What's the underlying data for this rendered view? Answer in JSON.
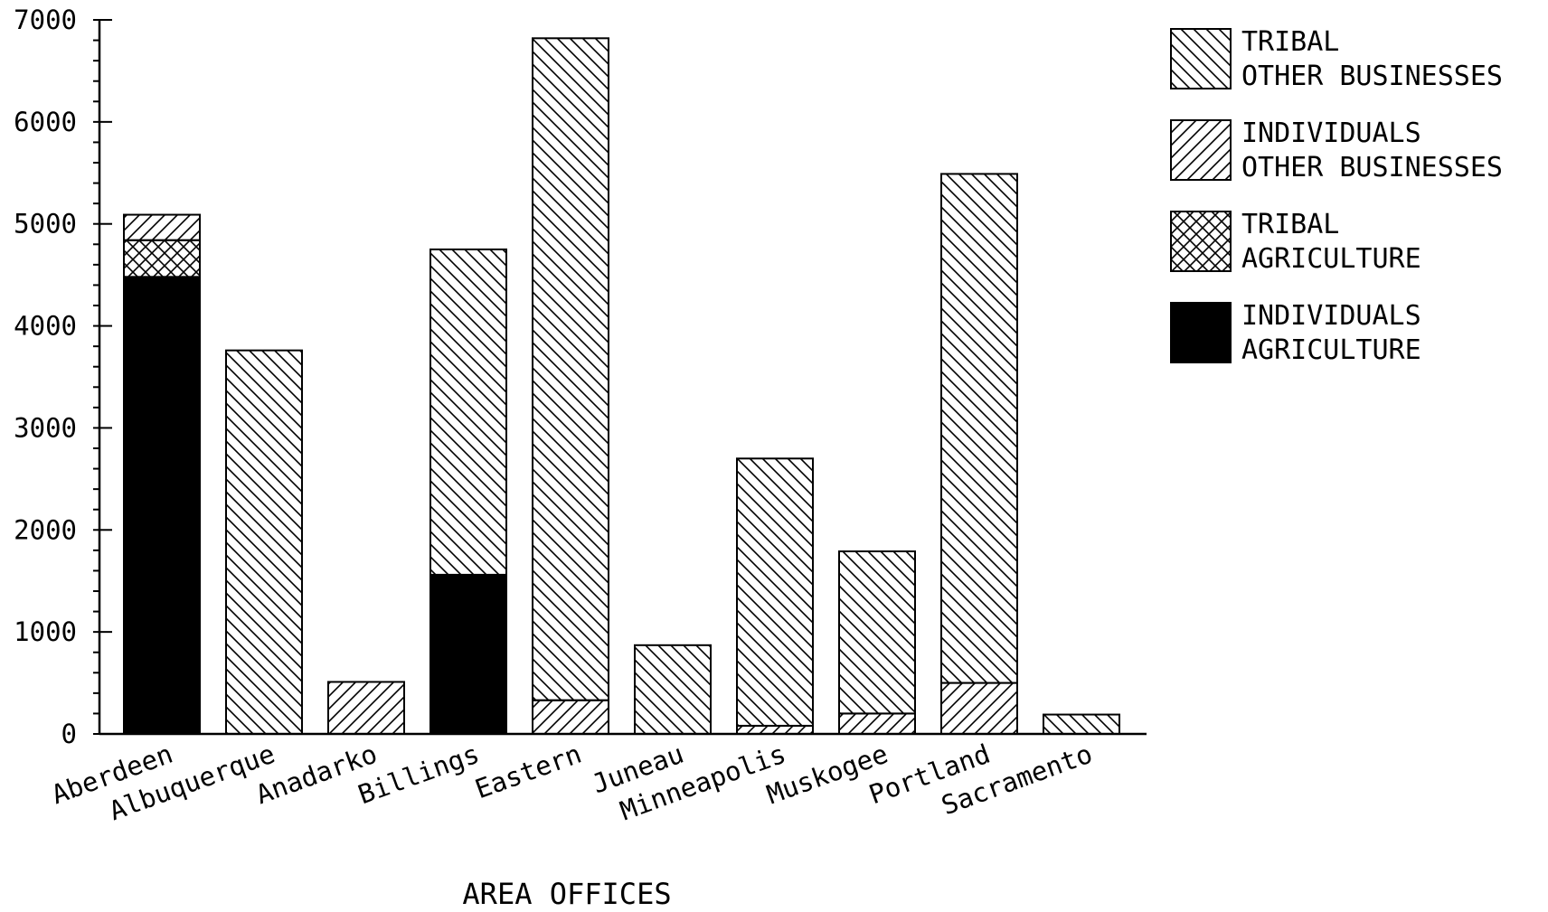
{
  "chart_data": {
    "type": "bar",
    "stacked": true,
    "title": "",
    "xlabel": "AREA OFFICES",
    "ylabel": "",
    "ylim": [
      0,
      7000
    ],
    "yticks": [
      0,
      1000,
      2000,
      3000,
      4000,
      5000,
      6000,
      7000
    ],
    "yticks_minor_step": 200,
    "grid": false,
    "legend_position": "top-right",
    "categories": [
      "Aberdeen",
      "Albuquerque",
      "Anadarko",
      "Billings",
      "Eastern",
      "Juneau",
      "Minneapolis",
      "Muskogee",
      "Portland",
      "Sacramento"
    ],
    "series": [
      {
        "name": "INDIVIDUALS AGRICULTURE",
        "legend_lines": [
          "INDIVIDUALS",
          "AGRICULTURE"
        ],
        "pattern": "solid-black",
        "values": [
          4480,
          0,
          0,
          1560,
          0,
          0,
          0,
          0,
          0,
          0
        ]
      },
      {
        "name": "TRIBAL AGRICULTURE",
        "legend_lines": [
          "TRIBAL",
          "AGRICULTURE"
        ],
        "pattern": "crosshatch",
        "values": [
          360,
          0,
          0,
          0,
          0,
          0,
          0,
          0,
          0,
          0
        ]
      },
      {
        "name": "INDIVIDUALS OTHER BUSINESSES",
        "legend_lines": [
          "INDIVIDUALS",
          "OTHER BUSINESSES"
        ],
        "pattern": "forward-hatch",
        "values": [
          250,
          0,
          510,
          0,
          330,
          0,
          80,
          200,
          500,
          0
        ]
      },
      {
        "name": "TRIBAL OTHER BUSINESSES",
        "legend_lines": [
          "TRIBAL",
          "OTHER BUSINESSES"
        ],
        "pattern": "back-hatch",
        "values": [
          0,
          3760,
          0,
          3190,
          6490,
          870,
          2620,
          1590,
          4990,
          190
        ]
      }
    ],
    "legend_order": [
      "TRIBAL OTHER BUSINESSES",
      "INDIVIDUALS OTHER BUSINESSES",
      "TRIBAL AGRICULTURE",
      "INDIVIDUALS AGRICULTURE"
    ]
  }
}
